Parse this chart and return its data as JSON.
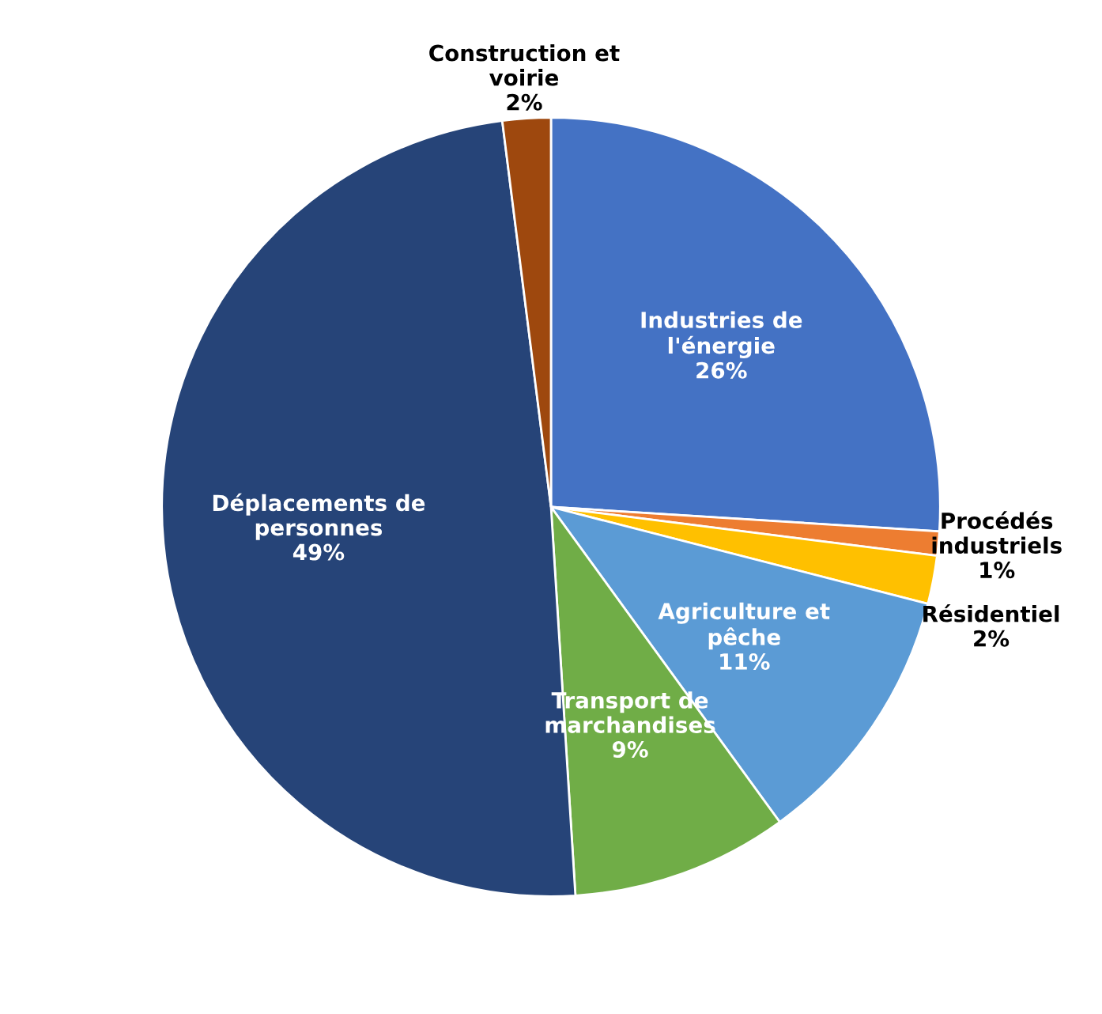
{
  "chart_data": {
    "type": "pie",
    "categories": [
      "Industries de l'énergie",
      "Procédés industriels",
      "Résidentiel",
      "Agriculture et pêche",
      "Transport de marchandises",
      "Déplacements de personnes",
      "Construction et voirie"
    ],
    "values": [
      26,
      1,
      2,
      11,
      9,
      49,
      2
    ],
    "value_labels": [
      "26%",
      "1%",
      "2%",
      "11%",
      "9%",
      "49%",
      "2%"
    ],
    "colors": [
      "#4472c4",
      "#ed7d31",
      "#ffc000",
      "#5b9bd5",
      "#70ad47",
      "#264478",
      "#9e480e"
    ]
  }
}
